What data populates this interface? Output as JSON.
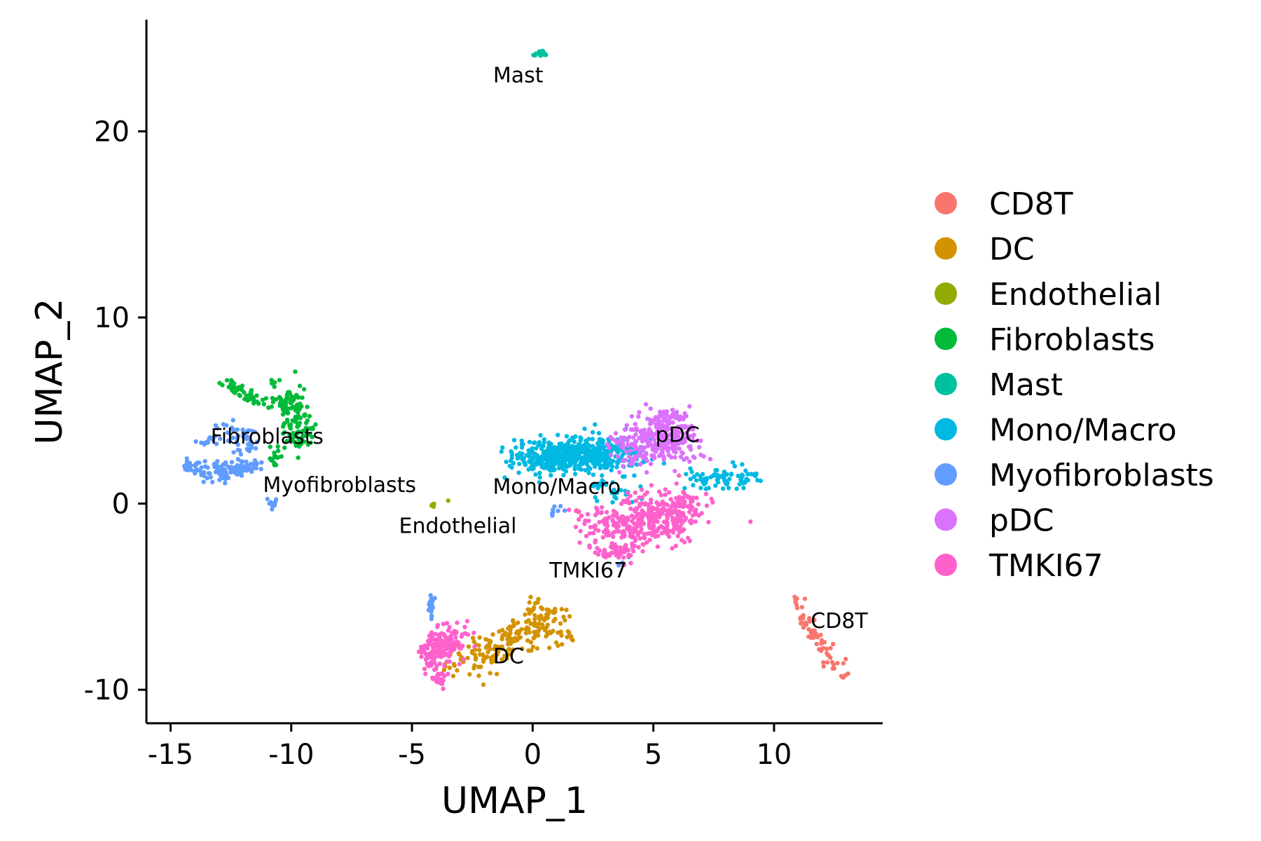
{
  "chart_data": {
    "type": "scatter",
    "xlabel": "UMAP_1",
    "ylabel": "UMAP_2",
    "xlim": [
      -16,
      14.5
    ],
    "ylim": [
      -11.8,
      26
    ],
    "xticks": [
      -15,
      -10,
      -5,
      0,
      5,
      10
    ],
    "yticks": [
      -10,
      0,
      10,
      20
    ],
    "xtick_labels": [
      "-15",
      "-10",
      "-5",
      "0",
      "5",
      "10"
    ],
    "ytick_labels": [
      "-10",
      "0",
      "10",
      "20"
    ],
    "grid": false,
    "legend": "right",
    "series": [
      {
        "name": "CD8T",
        "color": "#F8766D",
        "centroid": [
          11.8,
          -7.0
        ],
        "blobs": [
          {
            "path": [
              [
                10.9,
                -5.1
              ],
              [
                11.4,
                -6.5
              ],
              [
                12.0,
                -7.8
              ],
              [
                12.6,
                -8.8
              ],
              [
                13.2,
                -9.1
              ]
            ],
            "sx": 0.15,
            "sy": 0.25,
            "n": 70
          }
        ]
      },
      {
        "name": "DC",
        "color": "#D39200",
        "centroid": [
          -1.1,
          -8.6
        ],
        "blobs": [
          {
            "path": [
              [
                -2.9,
                -8.6
              ],
              [
                -1.8,
                -7.8
              ],
              [
                -0.6,
                -7.3
              ],
              [
                0.4,
                -6.6
              ],
              [
                1.2,
                -7.0
              ]
            ],
            "sx": 0.55,
            "sy": 0.5,
            "n": 190
          },
          {
            "path": [
              [
                0.0,
                -5.4
              ],
              [
                0.7,
                -6.2
              ]
            ],
            "sx": 0.3,
            "sy": 0.35,
            "n": 30
          },
          {
            "path": [
              [
                1.9,
                -0.4
              ]
            ],
            "sx": 0.08,
            "sy": 0.08,
            "n": 2
          }
        ]
      },
      {
        "name": "Endothelial",
        "color": "#93AA00",
        "centroid": [
          -4.1,
          0.0
        ],
        "blobs": [
          {
            "path": [
              [
                -4.1,
                -0.05
              ]
            ],
            "sx": 0.07,
            "sy": 0.07,
            "n": 5
          },
          {
            "path": [
              [
                -3.5,
                0.15
              ]
            ],
            "sx": 0.03,
            "sy": 0.03,
            "n": 1
          }
        ]
      },
      {
        "name": "Fibroblasts",
        "color": "#00BA38",
        "centroid": [
          -9.8,
          4.4
        ],
        "blobs": [
          {
            "path": [
              [
                -10.4,
                6.0
              ],
              [
                -9.9,
                5.0
              ],
              [
                -9.6,
                4.3
              ],
              [
                -9.8,
                3.4
              ]
            ],
            "sx": 0.32,
            "sy": 0.4,
            "n": 150
          },
          {
            "path": [
              [
                -12.8,
                6.5
              ],
              [
                -12.1,
                6.0
              ],
              [
                -11.3,
                5.4
              ]
            ],
            "sx": 0.18,
            "sy": 0.15,
            "n": 45
          },
          {
            "path": [
              [
                -10.6,
                2.6
              ],
              [
                -10.8,
                2.1
              ]
            ],
            "sx": 0.15,
            "sy": 0.2,
            "n": 15
          }
        ]
      },
      {
        "name": "Mast",
        "color": "#00C19F",
        "centroid": [
          0.3,
          24.2
        ],
        "blobs": [
          {
            "path": [
              [
                0.3,
                24.2
              ]
            ],
            "sx": 0.09,
            "sy": 0.09,
            "n": 20
          }
        ]
      },
      {
        "name": "Mono/Macro",
        "color": "#00B9E3",
        "centroid": [
          1.3,
          2.3
        ],
        "blobs": [
          {
            "path": [
              [
                0.0,
                2.4
              ],
              [
                1.3,
                2.6
              ],
              [
                2.6,
                2.6
              ],
              [
                3.6,
                2.5
              ]
            ],
            "sx": 0.75,
            "sy": 0.5,
            "n": 560
          },
          {
            "path": [
              [
                6.8,
                1.5
              ],
              [
                8.1,
                1.2
              ],
              [
                9.2,
                1.5
              ]
            ],
            "sx": 0.4,
            "sy": 0.28,
            "n": 80
          },
          {
            "path": [
              [
                2.6,
                0.5
              ],
              [
                4.3,
                0.6
              ]
            ],
            "sx": 0.3,
            "sy": 0.25,
            "n": 25
          }
        ]
      },
      {
        "name": "Myofibroblasts",
        "color": "#619CFF",
        "centroid": [
          -12.1,
          2.4
        ],
        "blobs": [
          {
            "path": [
              [
                -14.4,
                2.1
              ],
              [
                -13.3,
                1.7
              ],
              [
                -12.3,
                1.8
              ],
              [
                -11.3,
                2.1
              ]
            ],
            "sx": 0.3,
            "sy": 0.25,
            "n": 120
          },
          {
            "path": [
              [
                -12.5,
                4.3
              ],
              [
                -12.0,
                3.5
              ],
              [
                -11.8,
                2.6
              ]
            ],
            "sx": 0.3,
            "sy": 0.3,
            "n": 50
          },
          {
            "path": [
              [
                -13.9,
                3.0
              ],
              [
                -13.2,
                3.6
              ]
            ],
            "sx": 0.2,
            "sy": 0.2,
            "n": 15
          },
          {
            "path": [
              [
                -10.8,
                0.0
              ]
            ],
            "sx": 0.1,
            "sy": 0.15,
            "n": 12
          },
          {
            "path": [
              [
                -4.2,
                -5.0
              ],
              [
                -4.2,
                -5.9
              ]
            ],
            "sx": 0.06,
            "sy": 0.3,
            "n": 20
          },
          {
            "path": [
              [
                1.0,
                -0.4
              ]
            ],
            "sx": 0.2,
            "sy": 0.15,
            "n": 8
          },
          {
            "path": [
              [
                4.5,
                -2.3
              ],
              [
                1.0,
                -6.1
              ]
            ],
            "sx": 0.08,
            "sy": 0.08,
            "n": 3
          }
        ]
      },
      {
        "name": "pDC",
        "color": "#DB72FB",
        "centroid": [
          5.0,
          3.4
        ],
        "blobs": [
          {
            "path": [
              [
                3.9,
                2.9
              ],
              [
                4.8,
                3.4
              ],
              [
                5.8,
                3.7
              ],
              [
                6.3,
                3.1
              ]
            ],
            "sx": 0.5,
            "sy": 0.6,
            "n": 300
          },
          {
            "path": [
              [
                5.4,
                4.7
              ]
            ],
            "sx": 0.3,
            "sy": 0.2,
            "n": 25
          }
        ]
      },
      {
        "name": "TMKI67",
        "color": "#FF61CC",
        "centroid": [
          3.6,
          -1.8
        ],
        "blobs": [
          {
            "path": [
              [
                3.0,
                -1.4
              ],
              [
                4.3,
                -1.0
              ],
              [
                5.6,
                -0.8
              ],
              [
                6.3,
                -0.1
              ]
            ],
            "sx": 0.7,
            "sy": 0.65,
            "n": 430
          },
          {
            "path": [
              [
                3.5,
                -2.6
              ]
            ],
            "sx": 0.5,
            "sy": 0.3,
            "n": 40
          },
          {
            "path": [
              [
                -4.1,
                -8.3
              ],
              [
                -3.7,
                -7.4
              ],
              [
                -3.1,
                -7.1
              ]
            ],
            "sx": 0.35,
            "sy": 0.5,
            "n": 170
          },
          {
            "path": [
              [
                -3.9,
                -9.4
              ]
            ],
            "sx": 0.18,
            "sy": 0.25,
            "n": 25
          }
        ]
      }
    ],
    "annotations": [
      {
        "text": "Mast",
        "x": -0.6,
        "y": 23.0
      },
      {
        "text": "Fibroblasts",
        "x": -11.0,
        "y": 3.6
      },
      {
        "text": "pDC",
        "x": 6.0,
        "y": 3.7
      },
      {
        "text": "Myofibroblasts",
        "x": -8.0,
        "y": 1.0
      },
      {
        "text": "Mono/Macro",
        "x": 1.0,
        "y": 0.9
      },
      {
        "text": "Endothelial",
        "x": -3.1,
        "y": -1.2
      },
      {
        "text": "TMKI67",
        "x": 2.3,
        "y": -3.6
      },
      {
        "text": "CD8T",
        "x": 12.7,
        "y": -6.3
      },
      {
        "text": "DC",
        "x": -1.0,
        "y": -8.2
      }
    ]
  }
}
